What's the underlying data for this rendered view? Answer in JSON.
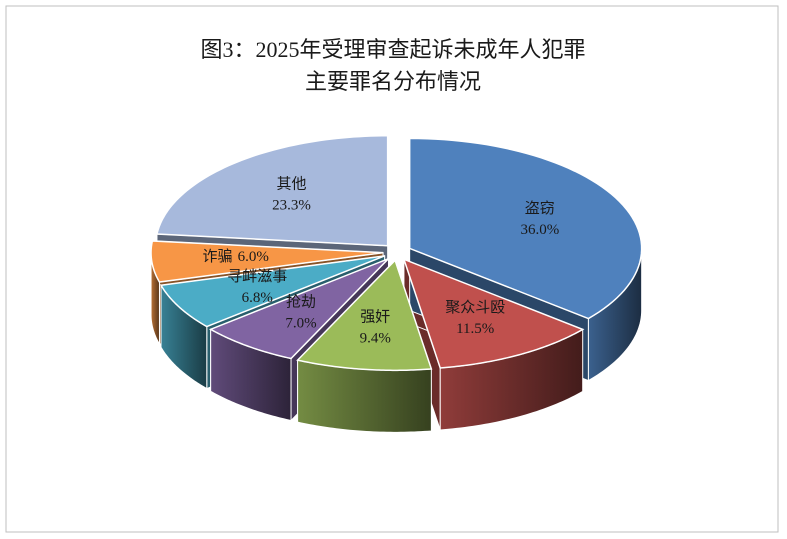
{
  "chart_data": {
    "type": "pie3d",
    "title": [
      "图3：2025年受理审查起诉未成年人犯罪",
      "主要罪名分布情况"
    ],
    "categories": [
      "盗窃",
      "聚众斗殴",
      "强奸",
      "抢劫",
      "寻衅滋事",
      "诈骗",
      "其他"
    ],
    "values": [
      36.0,
      11.5,
      9.4,
      7.0,
      6.8,
      6.0,
      23.3
    ],
    "value_labels": [
      "36.0%",
      "11.5%",
      "9.4%",
      "7.0%",
      "6.8%",
      "6.0%",
      "23.3%"
    ],
    "colors": [
      "#4f81bd",
      "#c0504d",
      "#9bbb59",
      "#8064a2",
      "#4bacc6",
      "#f79646",
      "#a7b9dc"
    ]
  }
}
